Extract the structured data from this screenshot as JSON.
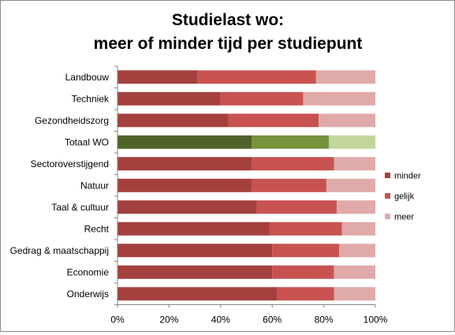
{
  "chart_data": {
    "type": "bar",
    "orientation": "horizontal",
    "stacking": "percent",
    "title_lines": [
      "Studielast wo:",
      "meer of minder tijd per studiepunt"
    ],
    "categories": [
      "Landbouw",
      "Techniek",
      "Gezondheidszorg",
      "Totaal WO",
      "Sectoroverstijgend",
      "Natuur",
      "Taal & cultuur",
      "Recht",
      "Gedrag & maatschappij",
      "Economie",
      "Onderwijs"
    ],
    "series": [
      {
        "name": "minder",
        "values": [
          31,
          40,
          43,
          52,
          52,
          52,
          54,
          59,
          60,
          60,
          62
        ]
      },
      {
        "name": "gelijk",
        "values": [
          46,
          32,
          35,
          30,
          32,
          29,
          31,
          28,
          26,
          24,
          22
        ]
      },
      {
        "name": "meer",
        "values": [
          23,
          28,
          22,
          18,
          16,
          19,
          15,
          13,
          14,
          16,
          16
        ]
      }
    ],
    "highlight_category": "Totaal WO",
    "xlim": [
      0,
      100
    ],
    "x_ticks": [
      "0%",
      "20%",
      "40%",
      "60%",
      "80%",
      "100%"
    ],
    "grid": false,
    "legend_position": "right",
    "colors": {
      "minder": "#a4403e",
      "gelijk": "#c85250",
      "meer": "#dfaaa9",
      "highlight_minder": "#4f6228",
      "highlight_gelijk": "#76923c",
      "highlight_meer": "#c3d69b",
      "axis": "#868686",
      "text": "#000000"
    }
  }
}
